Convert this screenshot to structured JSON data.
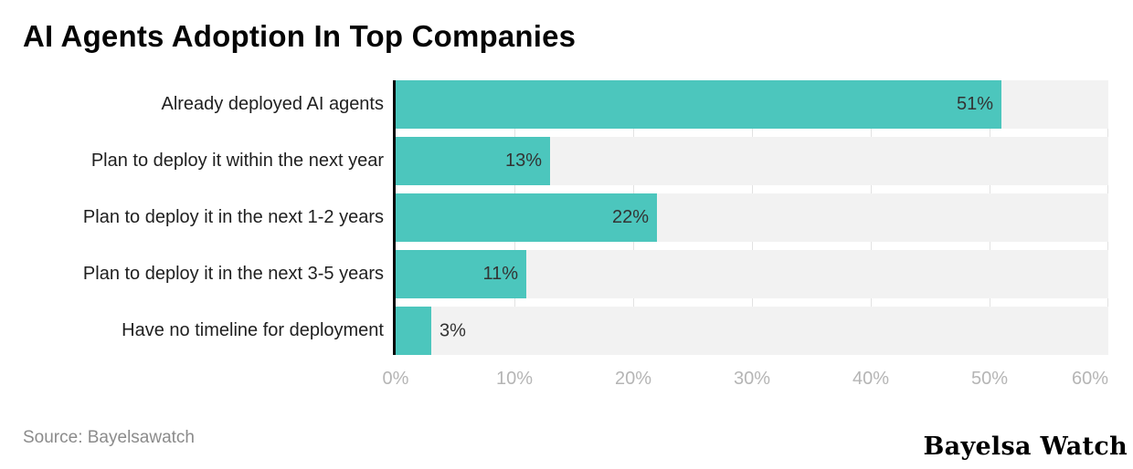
{
  "header": {
    "title": "AI Agents Adoption In Top Companies"
  },
  "chart_data": {
    "type": "bar",
    "orientation": "horizontal",
    "title": "AI Agents Adoption In Top Companies",
    "categories": [
      "Already deployed AI agents",
      "Plan to deploy it within the next year",
      "Plan to deploy it in the next 1-2 years",
      "Plan to deploy it in the next 3-5 years",
      "Have no timeline for deployment"
    ],
    "values": [
      51,
      13,
      22,
      11,
      3
    ],
    "value_labels": [
      "51%",
      "13%",
      "22%",
      "11%",
      "3%"
    ],
    "xlabel": "",
    "ylabel": "",
    "xlim": [
      0,
      60
    ],
    "x_ticks": [
      "0%",
      "10%",
      "20%",
      "30%",
      "40%",
      "50%",
      "60%"
    ],
    "grid": "vertical-on",
    "legend": "none",
    "bar_color": "#4cc6bd",
    "track_color": "#f2f2f2",
    "gridline_color": "#e2e2e2",
    "axis_line_color": "#0a0a0a"
  },
  "footer": {
    "source": "Source: Bayelsawatch",
    "brand": "Bayelsa Watch"
  }
}
